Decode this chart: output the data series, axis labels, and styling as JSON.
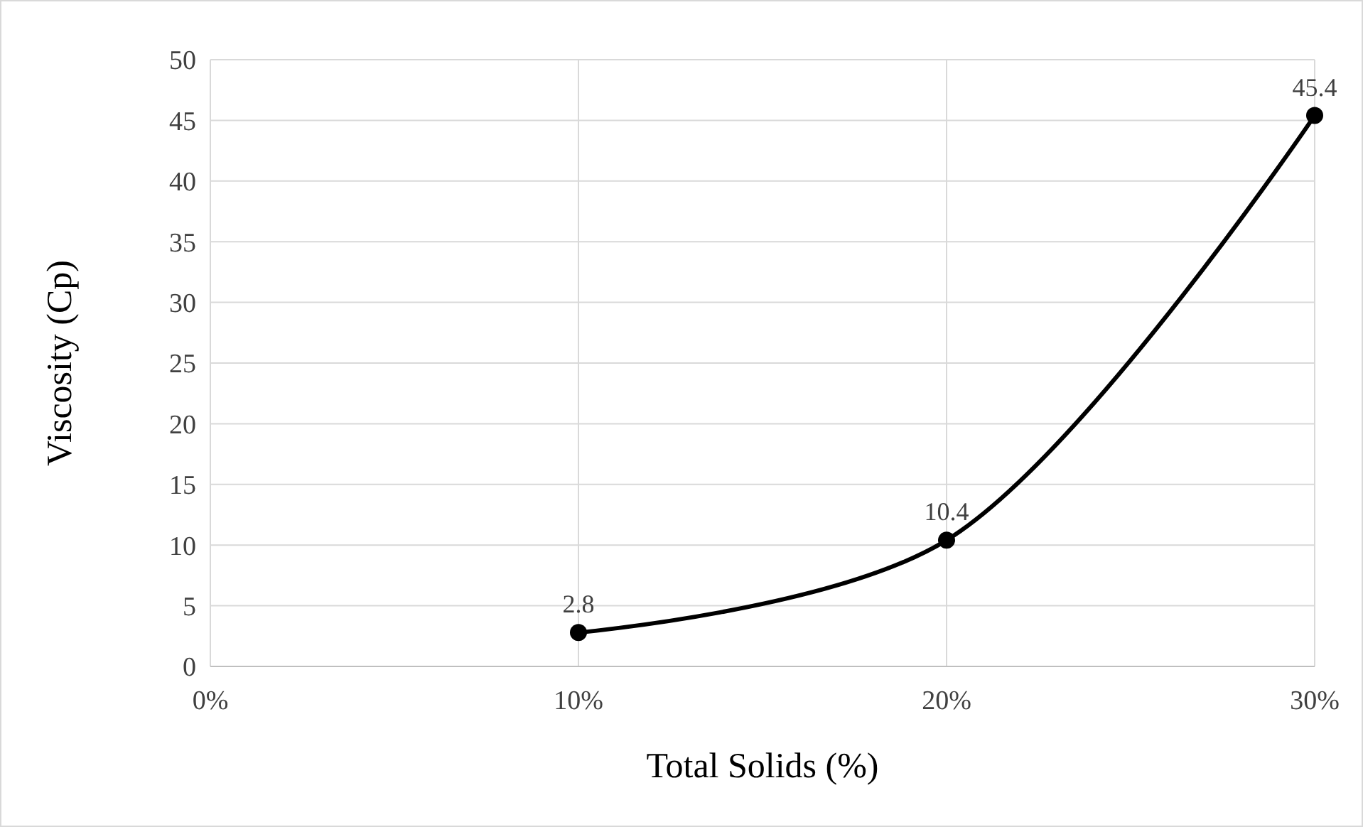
{
  "chart_data": {
    "type": "line",
    "xlabel": "Total Solids (%)",
    "ylabel": "Viscosity (Cp)",
    "x": [
      10,
      20,
      30
    ],
    "series": [
      {
        "color": "#000000",
        "values": [
          2.8,
          10.4,
          45.4
        ]
      }
    ],
    "xlim": [
      0,
      30
    ],
    "xticks": [
      {
        "value": 0,
        "label": "0%"
      },
      {
        "value": 10,
        "label": "10%"
      },
      {
        "value": 20,
        "label": "20%"
      },
      {
        "value": 30,
        "label": "30%"
      }
    ],
    "ylim": [
      0,
      50
    ],
    "yticks": [
      0,
      5,
      10,
      15,
      20,
      25,
      30,
      35,
      40,
      45,
      50
    ],
    "grid": true,
    "marker": "circle",
    "line_style": "solid",
    "data_labels": true
  }
}
